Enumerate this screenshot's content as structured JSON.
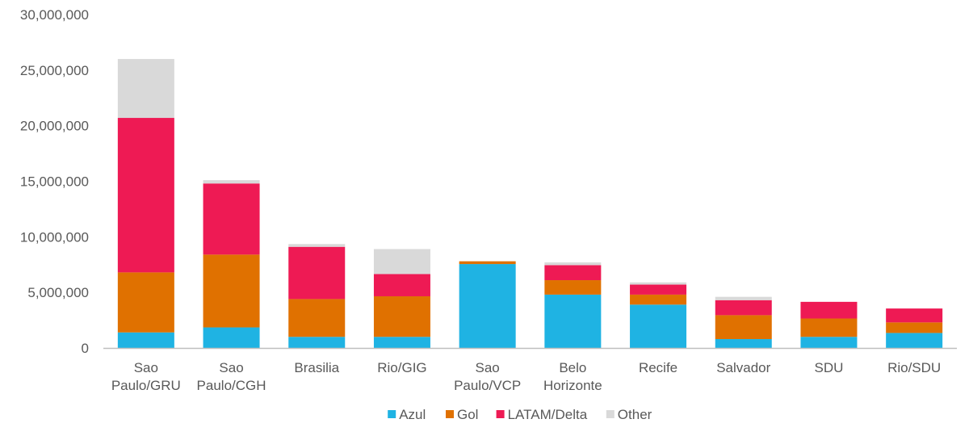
{
  "colors": {
    "Azul": "#1fb3e3",
    "Gol": "#e07100",
    "LATAM/Delta": "#ee1a54",
    "Other": "#d9d9d9",
    "axis": "#bfbfbf",
    "text": "#595959"
  },
  "chart_data": {
    "type": "bar",
    "stacked": true,
    "categories": [
      [
        "Sao",
        "Paulo/GRU"
      ],
      [
        "Sao",
        "Paulo/CGH"
      ],
      [
        "Brasilia"
      ],
      [
        "Rio/GIG"
      ],
      [
        "Sao",
        "Paulo/VCP"
      ],
      [
        "Belo",
        "Horizonte"
      ],
      [
        "Recife"
      ],
      [
        "Salvador"
      ],
      [
        "SDU"
      ],
      [
        "Rio/SDU"
      ]
    ],
    "series": [
      {
        "name": "Azul",
        "values": [
          1400000,
          1850000,
          1000000,
          1000000,
          7550000,
          4800000,
          3900000,
          800000,
          1000000,
          1350000
        ]
      },
      {
        "name": "Gol",
        "values": [
          5400000,
          6550000,
          3400000,
          3650000,
          250000,
          1300000,
          900000,
          2150000,
          1650000,
          950000
        ]
      },
      {
        "name": "LATAM/Delta",
        "values": [
          13900000,
          6400000,
          4700000,
          2000000,
          0,
          1350000,
          900000,
          1350000,
          1500000,
          1250000
        ]
      },
      {
        "name": "Other",
        "values": [
          5300000,
          300000,
          250000,
          2250000,
          0,
          250000,
          200000,
          300000,
          0,
          0
        ]
      }
    ],
    "ylim": [
      0,
      30000000
    ],
    "yticks": [
      "0",
      "5,000,000",
      "10,000,000",
      "15,000,000",
      "20,000,000",
      "25,000,000",
      "30,000,000"
    ],
    "ytick_values": [
      0,
      5000000,
      10000000,
      15000000,
      20000000,
      25000000,
      30000000
    ],
    "grid": false,
    "legend_position": "bottom",
    "title": "",
    "xlabel": "",
    "ylabel": ""
  }
}
